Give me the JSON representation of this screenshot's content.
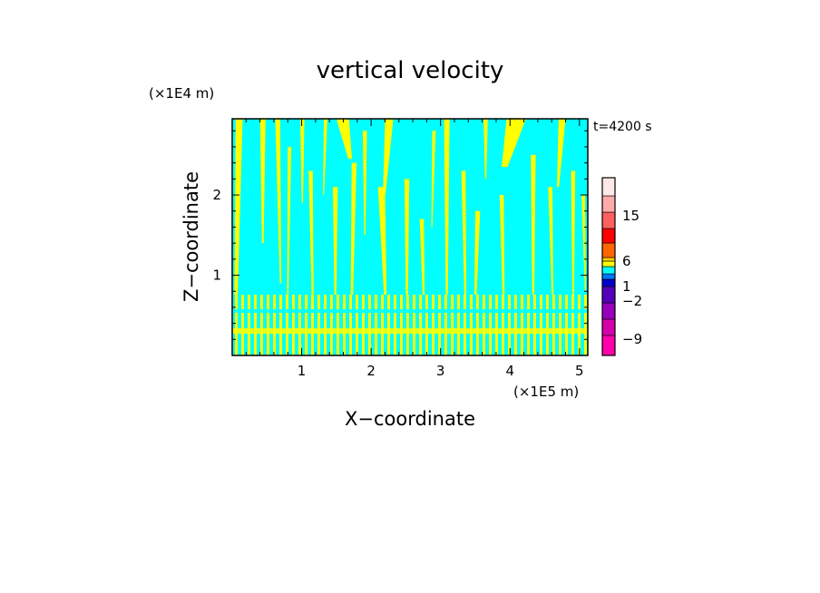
{
  "chart_data": {
    "type": "heatmap",
    "title": "vertical velocity",
    "xlabel": "X−coordinate",
    "ylabel": "Z−coordinate",
    "x_unit": "(×1E5 m)",
    "y_unit": "(×1E4 m)",
    "time_label": "t=4200 s",
    "xlim": [
      0,
      5.12
    ],
    "ylim": [
      0,
      2.95
    ],
    "x_ticks": [
      "1",
      "2",
      "3",
      "4",
      "5"
    ],
    "x_tick_values": [
      1,
      2,
      3,
      4,
      5
    ],
    "y_ticks": [
      "1",
      "2"
    ],
    "y_tick_values": [
      1,
      2
    ],
    "field_colors": {
      "downward": "#00ffff",
      "upward": "#ffff00"
    },
    "colorbar": {
      "labels": [
        "15",
        "6",
        "1",
        "−2",
        "−9"
      ],
      "label_values": [
        15,
        6,
        1,
        -2,
        -9
      ],
      "bins": [
        {
          "color": "#ff00aa"
        },
        {
          "color": "#d400aa"
        },
        {
          "color": "#9900bb"
        },
        {
          "color": "#5500bb"
        },
        {
          "color": "#0000cc"
        },
        {
          "color": "#0077ff"
        },
        {
          "color": "#00ffff"
        },
        {
          "color": "#ffff00"
        },
        {
          "color": "#ffcc00"
        },
        {
          "color": "#ff6600"
        },
        {
          "color": "#ff0000"
        },
        {
          "color": "#ff6060"
        },
        {
          "color": "#ffaaaa"
        },
        {
          "color": "#ffe8e8"
        }
      ]
    },
    "plumes": [
      {
        "x": 0.05,
        "w": 0.1,
        "top": 2.95,
        "base": 0.0
      },
      {
        "x": 0.4,
        "w": 0.08,
        "top": 2.95,
        "base": 1.4
      },
      {
        "x": 0.62,
        "w": 0.07,
        "top": 2.95,
        "base": 0.9
      },
      {
        "x": 0.8,
        "w": 0.05,
        "top": 2.6,
        "base": 0.4
      },
      {
        "x": 0.98,
        "w": 0.06,
        "top": 2.95,
        "base": 1.9
      },
      {
        "x": 1.1,
        "w": 0.06,
        "top": 2.3,
        "base": 0.3
      },
      {
        "x": 1.32,
        "w": 0.05,
        "top": 2.95,
        "base": 2.0
      },
      {
        "x": 1.45,
        "w": 0.07,
        "top": 2.1,
        "base": 0.5
      },
      {
        "x": 1.5,
        "w": 0.18,
        "top": 2.95,
        "base": 2.45
      },
      {
        "x": 1.72,
        "w": 0.07,
        "top": 2.4,
        "base": 0.2
      },
      {
        "x": 1.88,
        "w": 0.06,
        "top": 2.8,
        "base": 1.5
      },
      {
        "x": 2.1,
        "w": 0.1,
        "top": 2.1,
        "base": 0.6
      },
      {
        "x": 2.2,
        "w": 0.12,
        "top": 2.95,
        "base": 2.0
      },
      {
        "x": 2.48,
        "w": 0.07,
        "top": 2.2,
        "base": 0.3
      },
      {
        "x": 2.7,
        "w": 0.06,
        "top": 1.7,
        "base": 0.4
      },
      {
        "x": 2.88,
        "w": 0.05,
        "top": 2.8,
        "base": 1.6
      },
      {
        "x": 3.05,
        "w": 0.08,
        "top": 2.95,
        "base": 0.5
      },
      {
        "x": 3.3,
        "w": 0.06,
        "top": 2.3,
        "base": 0.2
      },
      {
        "x": 3.5,
        "w": 0.07,
        "top": 1.8,
        "base": 0.4
      },
      {
        "x": 3.62,
        "w": 0.06,
        "top": 2.95,
        "base": 2.2
      },
      {
        "x": 3.85,
        "w": 0.06,
        "top": 2.0,
        "base": 0.3
      },
      {
        "x": 3.95,
        "w": 0.28,
        "top": 2.95,
        "base": 2.35
      },
      {
        "x": 4.3,
        "w": 0.07,
        "top": 2.5,
        "base": 0.4
      },
      {
        "x": 4.55,
        "w": 0.06,
        "top": 2.1,
        "base": 0.6
      },
      {
        "x": 4.7,
        "w": 0.1,
        "top": 2.95,
        "base": 2.1
      },
      {
        "x": 4.88,
        "w": 0.06,
        "top": 2.3,
        "base": 0.5
      },
      {
        "x": 5.03,
        "w": 0.05,
        "top": 2.0,
        "base": 0.8
      }
    ]
  }
}
